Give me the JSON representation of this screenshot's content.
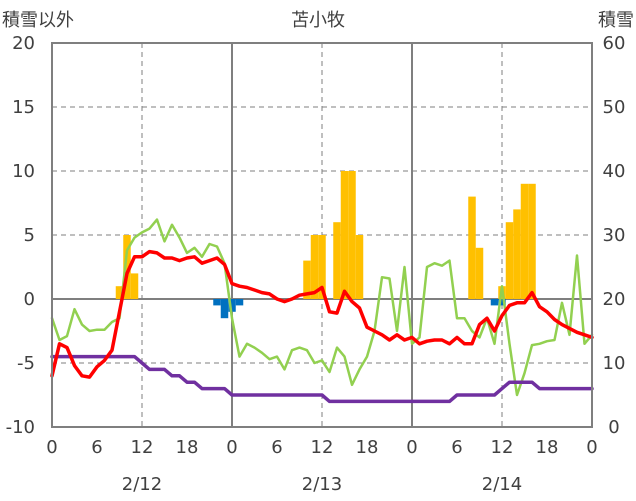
{
  "chart_data": {
    "type": "combo",
    "title": "苫小牧",
    "y_left_label": "積雪以外",
    "y_right_label": "積雪",
    "y_left": {
      "min": -10,
      "max": 20,
      "ticks": [
        20,
        15,
        10,
        5,
        0,
        -5,
        -10
      ],
      "tick_labels": [
        "20",
        "15",
        "10",
        "5",
        "0",
        "-5",
        "-10"
      ]
    },
    "y_right": {
      "min": 0,
      "max": 60,
      "ticks": [
        60,
        50,
        40,
        30,
        20,
        10,
        0
      ],
      "tick_labels": [
        "60",
        "50",
        "40",
        "30",
        "20",
        "10",
        "0"
      ]
    },
    "x": {
      "min": 0,
      "max": 72,
      "ticks": [
        0,
        6,
        12,
        18,
        24,
        30,
        36,
        42,
        48,
        54,
        60,
        66,
        72
      ],
      "tick_labels": [
        "0",
        "6",
        "12",
        "18",
        "0",
        "6",
        "12",
        "18",
        "0",
        "6",
        "12",
        "18",
        "0"
      ]
    },
    "date_labels": [
      {
        "hour": 12,
        "label": "2/12"
      },
      {
        "hour": 36,
        "label": "2/13"
      },
      {
        "hour": 60,
        "label": "2/14"
      }
    ],
    "day_boundaries": [
      24,
      48
    ],
    "dashed_lines": [
      12,
      36,
      60
    ],
    "colors": {
      "precip": "#FFC000",
      "melt": "#0070C0",
      "temperature": "#FF0000",
      "wind": "#92D050",
      "snow_depth": "#7030A0"
    },
    "precip_bars": [
      {
        "x": 9,
        "v": 1
      },
      {
        "x": 10,
        "v": 5
      },
      {
        "x": 11,
        "v": 2
      },
      {
        "x": 34,
        "v": 3
      },
      {
        "x": 35,
        "v": 5
      },
      {
        "x": 36,
        "v": 5
      },
      {
        "x": 38,
        "v": 6
      },
      {
        "x": 39,
        "v": 10
      },
      {
        "x": 40,
        "v": 10
      },
      {
        "x": 41,
        "v": 5
      },
      {
        "x": 56,
        "v": 8
      },
      {
        "x": 57,
        "v": 4
      },
      {
        "x": 60,
        "v": 1
      },
      {
        "x": 61,
        "v": 6
      },
      {
        "x": 62,
        "v": 7
      },
      {
        "x": 63,
        "v": 9
      },
      {
        "x": 64,
        "v": 9
      }
    ],
    "melt_bars": [
      {
        "x": 22,
        "v": -0.5
      },
      {
        "x": 23,
        "v": -1.5
      },
      {
        "x": 24,
        "v": -1.0
      },
      {
        "x": 25,
        "v": -0.5
      },
      {
        "x": 59,
        "v": -0.5
      },
      {
        "x": 60,
        "v": -0.5
      }
    ],
    "series": [
      {
        "key": "temperature",
        "axis": "left",
        "x": [
          0,
          1,
          2,
          3,
          4,
          5,
          6,
          7,
          8,
          9,
          10,
          11,
          12,
          13,
          14,
          15,
          16,
          17,
          18,
          19,
          20,
          21,
          22,
          23,
          24,
          25,
          26,
          27,
          28,
          29,
          30,
          31,
          32,
          33,
          34,
          35,
          36,
          37,
          38,
          39,
          40,
          41,
          42,
          43,
          44,
          45,
          46,
          47,
          48,
          49,
          50,
          51,
          52,
          53,
          54,
          55,
          56,
          57,
          58,
          59,
          60,
          61,
          62,
          63,
          64,
          65,
          66,
          67,
          68,
          69,
          70,
          71,
          72
        ],
        "y": [
          -6.0,
          -3.5,
          -3.8,
          -5.2,
          -6.0,
          -6.1,
          -5.3,
          -4.8,
          -4.0,
          -1.0,
          2.0,
          3.3,
          3.3,
          3.7,
          3.6,
          3.2,
          3.2,
          3.0,
          3.2,
          3.3,
          2.8,
          3.0,
          3.2,
          2.7,
          1.2,
          1.0,
          0.9,
          0.7,
          0.5,
          0.4,
          0.0,
          -0.2,
          0.0,
          0.3,
          0.4,
          0.5,
          0.9,
          -1.0,
          -1.1,
          0.6,
          -0.2,
          -0.7,
          -2.2,
          -2.5,
          -2.8,
          -3.2,
          -2.8,
          -3.2,
          -3.0,
          -3.5,
          -3.3,
          -3.2,
          -3.2,
          -3.5,
          -3.0,
          -3.5,
          -3.5,
          -2.0,
          -1.5,
          -2.5,
          -1.3,
          -0.5,
          -0.3,
          -0.3,
          0.5,
          -0.6,
          -1.0,
          -1.6,
          -2.0,
          -2.3,
          -2.6,
          -2.8,
          -3.0
        ]
      },
      {
        "key": "wind",
        "axis": "left",
        "x": [
          0,
          1,
          2,
          3,
          4,
          5,
          6,
          7,
          8,
          9,
          10,
          11,
          12,
          13,
          14,
          15,
          16,
          17,
          18,
          19,
          20,
          21,
          22,
          23,
          24,
          25,
          26,
          27,
          28,
          29,
          30,
          31,
          32,
          33,
          34,
          35,
          36,
          37,
          38,
          39,
          40,
          41,
          42,
          43,
          44,
          45,
          46,
          47,
          48,
          49,
          50,
          51,
          52,
          53,
          54,
          55,
          56,
          57,
          58,
          59,
          60,
          61,
          62,
          63,
          64,
          65,
          66,
          67,
          68,
          69,
          70,
          71,
          72
        ],
        "y": [
          -1.5,
          -3.2,
          -2.9,
          -0.8,
          -2.0,
          -2.5,
          -2.4,
          -2.4,
          -1.8,
          -1.5,
          3.8,
          4.8,
          5.2,
          5.5,
          6.2,
          4.5,
          5.8,
          4.8,
          3.6,
          4.0,
          3.3,
          4.3,
          4.1,
          2.8,
          -1.5,
          -4.5,
          -3.5,
          -3.8,
          -4.2,
          -4.7,
          -4.5,
          -5.5,
          -4.0,
          -3.8,
          -4.0,
          -5.0,
          -4.8,
          -5.7,
          -3.8,
          -4.5,
          -6.7,
          -5.5,
          -4.5,
          -2.5,
          1.7,
          1.6,
          -2.5,
          2.5,
          -3.5,
          -3.0,
          2.5,
          2.8,
          2.6,
          3.0,
          -1.5,
          -1.5,
          -2.5,
          -3.0,
          -1.5,
          -3.5,
          1.0,
          -3.5,
          -7.5,
          -5.8,
          -3.6,
          -3.5,
          -3.3,
          -3.2,
          -0.3,
          -2.8,
          3.4,
          -3.5,
          -2.8
        ]
      },
      {
        "key": "snow_depth",
        "axis": "right",
        "x": [
          0,
          1,
          2,
          3,
          4,
          5,
          6,
          7,
          8,
          9,
          10,
          11,
          12,
          13,
          14,
          15,
          16,
          17,
          18,
          19,
          20,
          21,
          22,
          23,
          24,
          25,
          26,
          27,
          28,
          29,
          30,
          31,
          32,
          33,
          34,
          35,
          36,
          37,
          38,
          39,
          40,
          41,
          42,
          43,
          44,
          45,
          46,
          47,
          48,
          49,
          50,
          51,
          52,
          53,
          54,
          55,
          56,
          57,
          58,
          59,
          60,
          61,
          62,
          63,
          64,
          65,
          66,
          67,
          68,
          69,
          70,
          71,
          72
        ],
        "y": [
          11,
          11,
          11,
          11,
          11,
          11,
          11,
          11,
          11,
          11,
          11,
          11,
          10,
          9,
          9,
          9,
          8,
          8,
          7,
          7,
          6,
          6,
          6,
          6,
          5,
          5,
          5,
          5,
          5,
          5,
          5,
          5,
          5,
          5,
          5,
          5,
          5,
          4,
          4,
          4,
          4,
          4,
          4,
          4,
          4,
          4,
          4,
          4,
          4,
          4,
          4,
          4,
          4,
          4,
          5,
          5,
          5,
          5,
          5,
          5,
          6,
          7,
          7,
          7,
          7,
          6,
          6,
          6,
          6,
          6,
          6,
          6,
          6
        ]
      }
    ]
  }
}
